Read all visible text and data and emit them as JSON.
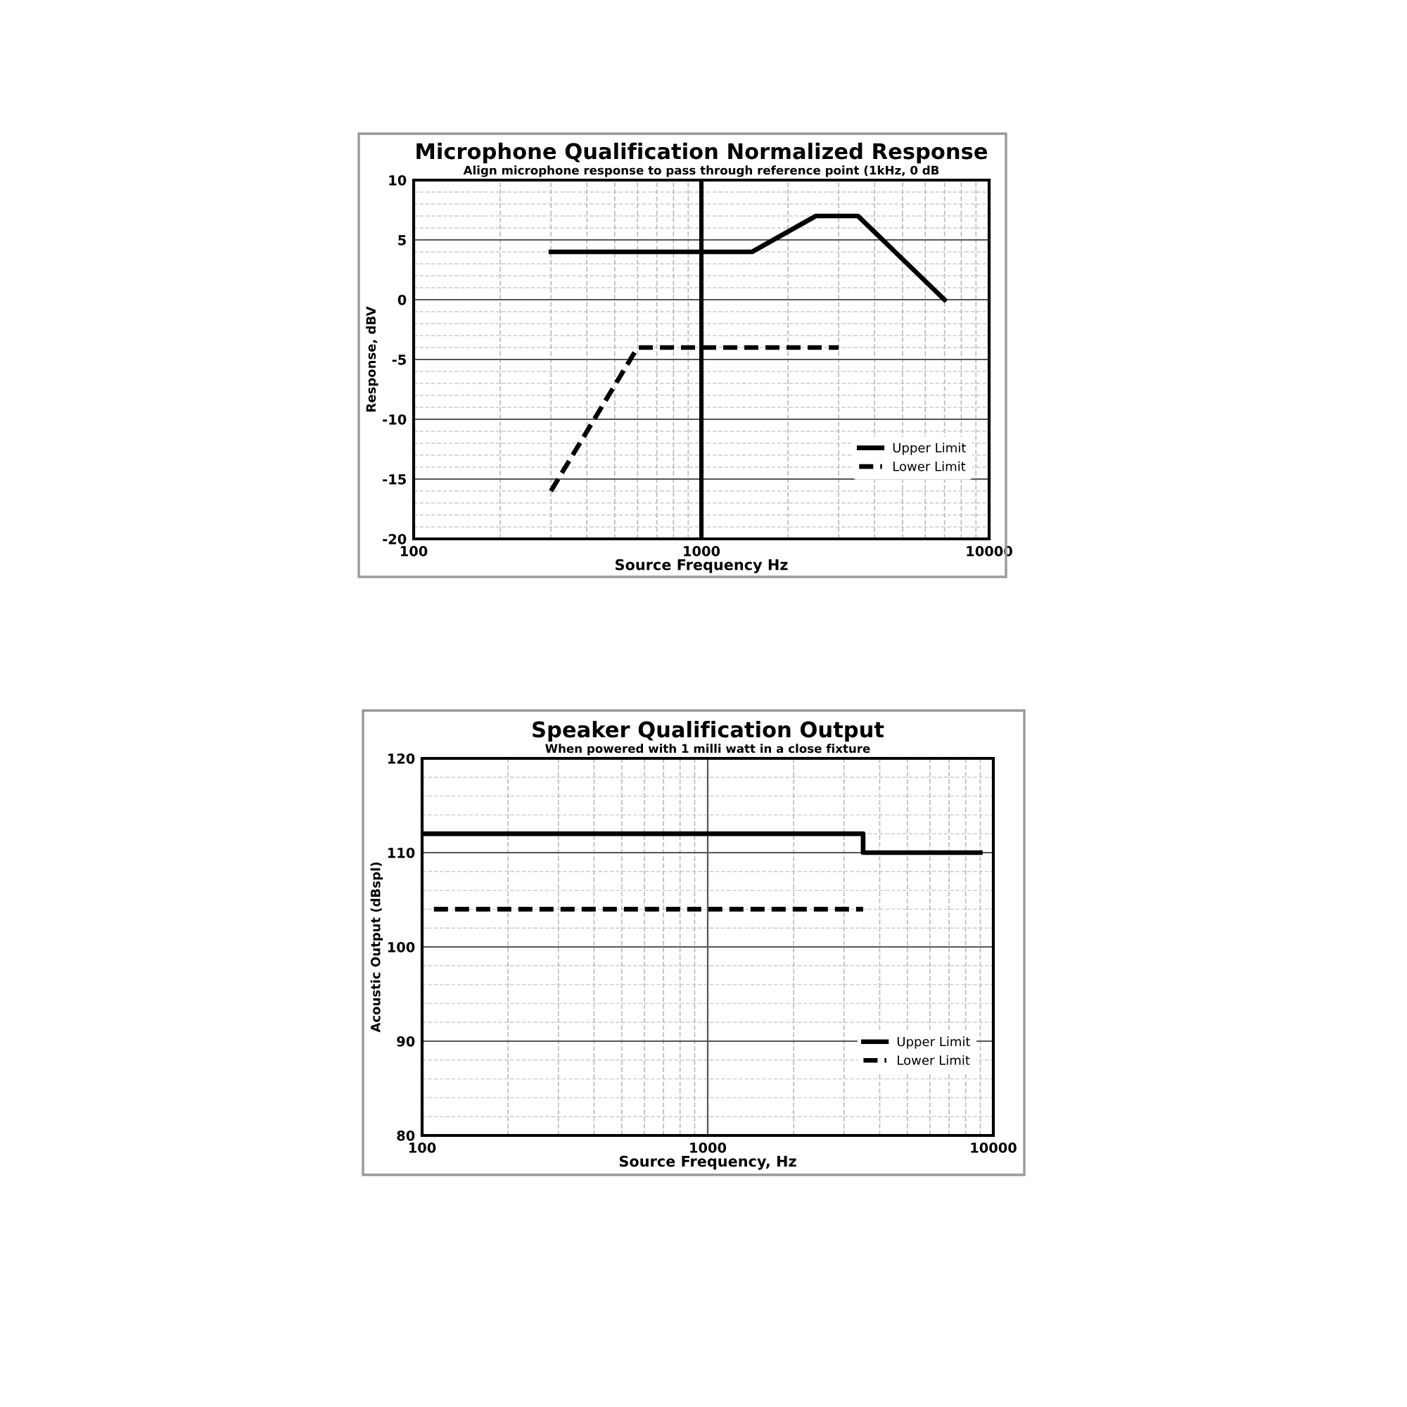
{
  "chart_data": [
    {
      "type": "line",
      "title": "Microphone Qualification Normalized Response",
      "subtitle": "Align microphone response to pass through reference point (1kHz, 0 dB",
      "xlabel": "Source Frequency Hz",
      "ylabel": "Response, dBV",
      "log": "x",
      "xlim": [
        100,
        10000
      ],
      "xticks": [
        100,
        1000,
        10000
      ],
      "ylim": [
        -20,
        10
      ],
      "yticks": [
        -20,
        -15,
        -10,
        -5,
        0,
        5,
        10
      ],
      "grid": true,
      "legend": "lower right",
      "ref_lines": [
        {
          "axis": "x",
          "value": 1000,
          "label": null,
          "color": "#000000"
        }
      ],
      "series": [
        {
          "name": "Upper Limit",
          "color": "#000000",
          "line_style": "solid",
          "x": [
            300,
            1500,
            2500,
            3500,
            7000
          ],
          "values": [
            4,
            4,
            7,
            7,
            0
          ]
        },
        {
          "name": "Lower Limit",
          "color": "#000000",
          "line_style": "dashed",
          "x": [
            300,
            600,
            3000
          ],
          "values": [
            -16,
            -4,
            -4
          ]
        }
      ]
    },
    {
      "type": "line",
      "title": "Speaker Qualification Output",
      "subtitle": "When powered with 1 milli watt in a close fixture",
      "xlabel": "Source Frequency, Hz",
      "ylabel": "Acoustic Output (dBspl)",
      "log": "x",
      "xlim": [
        100,
        10000
      ],
      "xticks": [
        100,
        1000,
        10000
      ],
      "ylim": [
        80,
        120
      ],
      "yticks": [
        80,
        90,
        100,
        110,
        120
      ],
      "grid": true,
      "legend": "lower right",
      "series": [
        {
          "name": "Upper Limit",
          "color": "#000000",
          "line_style": "solid",
          "x": [
            100,
            3500,
            3500,
            9000
          ],
          "values": [
            112,
            112,
            110,
            110
          ]
        },
        {
          "name": "Lower Limit",
          "color": "#000000",
          "line_style": "dashed",
          "x": [
            110,
            3500
          ],
          "values": [
            104,
            104
          ]
        }
      ]
    }
  ]
}
